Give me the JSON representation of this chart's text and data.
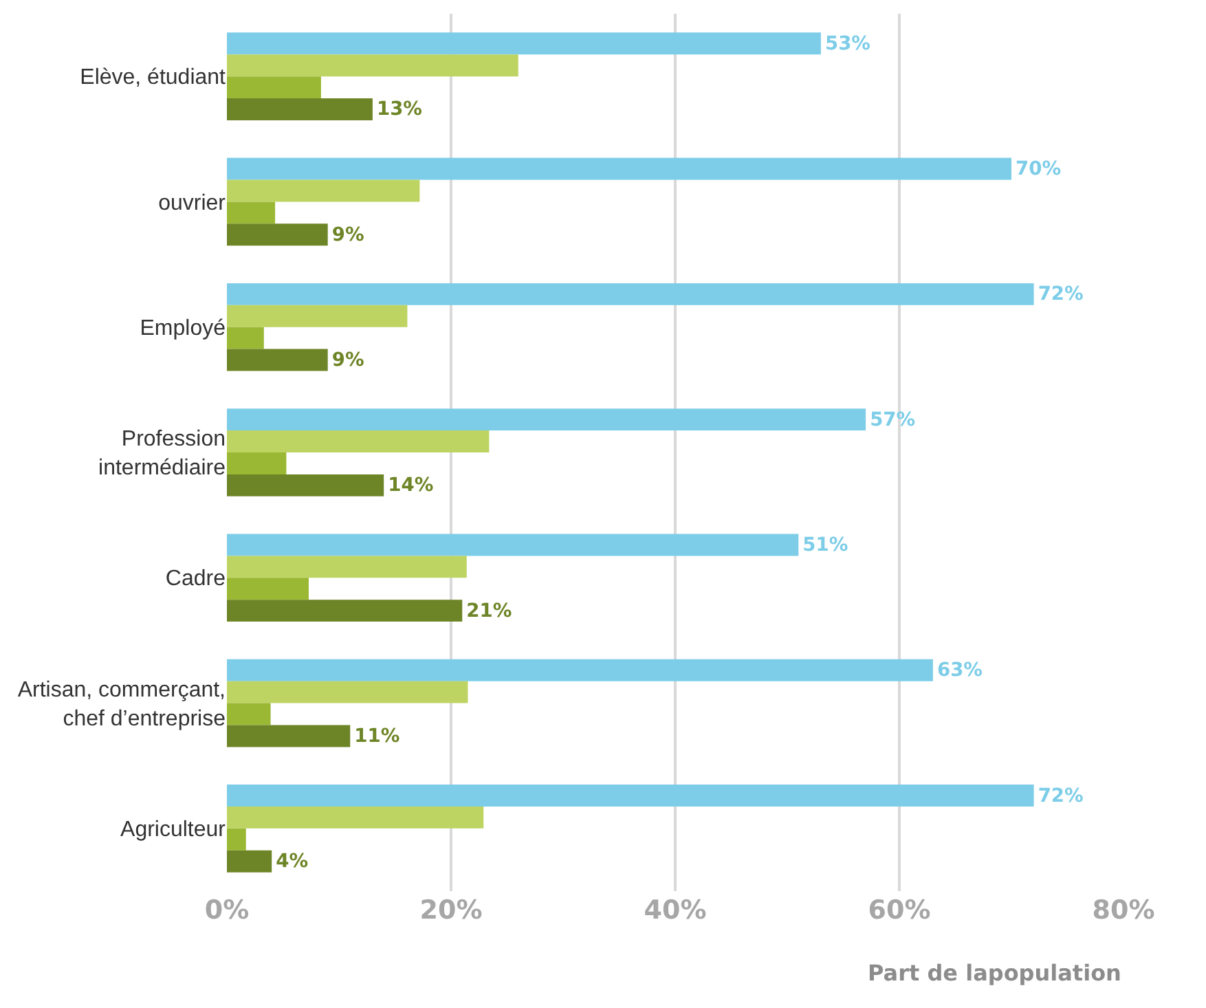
{
  "chart_data": {
    "type": "bar",
    "orientation": "horizontal",
    "xlabel": "Part de lapopulation",
    "categories": [
      "Elève, étudiant",
      "ouvrier",
      "Employé",
      "Profession\nintermédiaire",
      "Cadre",
      "Artisan, commerçant,\nchef d’entreprise",
      "Agriculteur"
    ],
    "series": [
      {
        "color": "#7dcde8",
        "values": [
          53,
          70,
          72,
          57,
          51,
          63,
          72
        ],
        "value_labels": [
          "53%",
          "70%",
          "72%",
          "57%",
          "51%",
          "63%",
          "72%"
        ]
      },
      {
        "color": "#bdd462",
        "values": [
          26,
          17.2,
          16.1,
          23.4,
          21.4,
          21.5,
          22.9
        ]
      },
      {
        "color": "#9ab833",
        "values": [
          8.4,
          4.3,
          3.3,
          5.3,
          7.3,
          3.9,
          1.7
        ]
      },
      {
        "color": "#6e8527",
        "values": [
          13,
          9,
          9,
          14,
          21,
          11,
          4
        ],
        "value_labels": [
          "13%",
          "9%",
          "9%",
          "14%",
          "21%",
          "11%",
          "4%"
        ]
      }
    ],
    "xlim": [
      0,
      80
    ],
    "xticks": [
      {
        "value": 0,
        "label": "0%"
      },
      {
        "value": 20,
        "label": "20%"
      },
      {
        "value": 40,
        "label": "40%"
      },
      {
        "value": 60,
        "label": "60%"
      },
      {
        "value": 80,
        "label": "80%"
      }
    ],
    "grid": "x"
  }
}
